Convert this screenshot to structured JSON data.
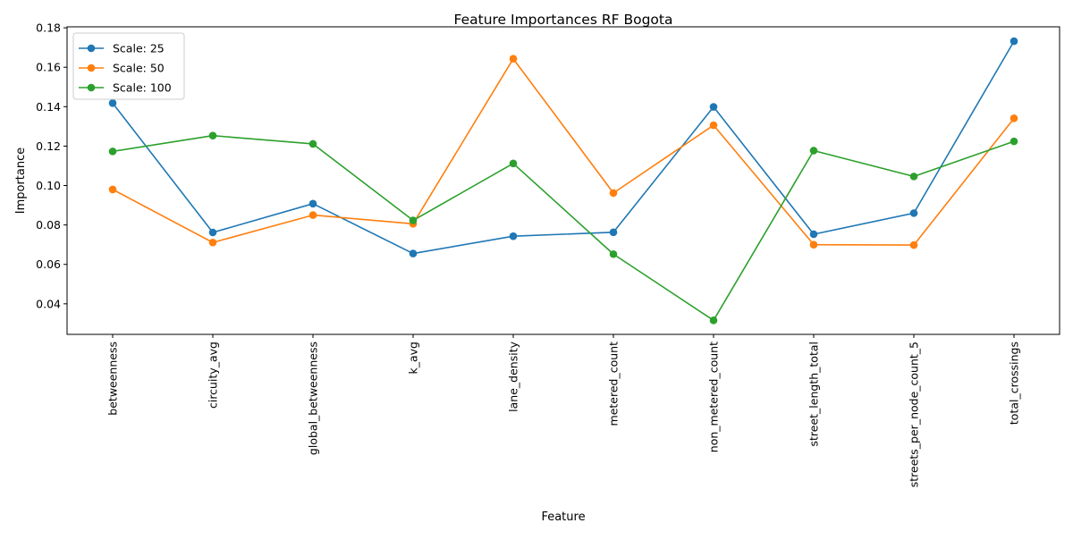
{
  "chart_data": {
    "type": "line",
    "title": "Feature Importances RF Bogota",
    "xlabel": "Feature",
    "ylabel": "Importance",
    "categories": [
      "betweenness",
      "circuity_avg",
      "global_betweenness",
      "k_avg",
      "lane_density",
      "metered_count",
      "non_metered_count",
      "street_length_total",
      "streets_per_node_count_5",
      "total_crossings"
    ],
    "ylim": [
      0.0245,
      0.1805
    ],
    "yticks": [
      0.04,
      0.06,
      0.08,
      0.1,
      0.12,
      0.14,
      0.16,
      0.18
    ],
    "ytick_labels": [
      "0.04",
      "0.06",
      "0.08",
      "0.10",
      "0.12",
      "0.14",
      "0.16",
      "0.18"
    ],
    "grid": false,
    "legend_position": "top-left",
    "marker": "circle",
    "series": [
      {
        "name": "Scale: 25",
        "color": "#1f77b4",
        "values": [
          0.1418,
          0.0762,
          0.0908,
          0.0655,
          0.0743,
          0.0763,
          0.1399,
          0.0753,
          0.086,
          0.1732
        ]
      },
      {
        "name": "Scale: 50",
        "color": "#ff7f0e",
        "values": [
          0.098,
          0.0711,
          0.085,
          0.0806,
          0.1643,
          0.0962,
          0.1306,
          0.07,
          0.0698,
          0.1341
        ]
      },
      {
        "name": "Scale: 100",
        "color": "#2ca02c",
        "values": [
          0.1173,
          0.1253,
          0.1211,
          0.0823,
          0.1112,
          0.0652,
          0.0316,
          0.1177,
          0.1046,
          0.1224
        ]
      }
    ]
  }
}
